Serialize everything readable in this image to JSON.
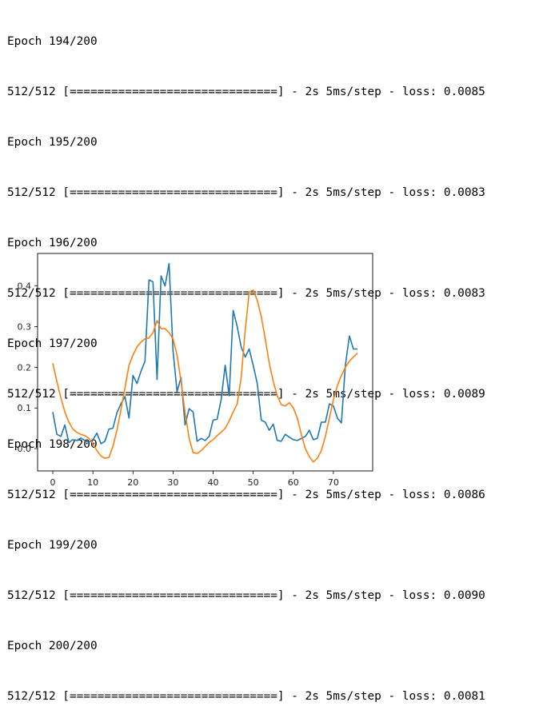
{
  "log": {
    "lines": [
      "Epoch 194/200",
      "512/512 [==============================] - 2s 5ms/step - loss: 0.0085",
      "Epoch 195/200",
      "512/512 [==============================] - 2s 5ms/step - loss: 0.0083",
      "Epoch 196/200",
      "512/512 [==============================] - 2s 5ms/step - loss: 0.0083",
      "Epoch 197/200",
      "512/512 [==============================] - 2s 5ms/step - loss: 0.0089",
      "Epoch 198/200",
      "512/512 [==============================] - 2s 5ms/step - loss: 0.0086",
      "Epoch 199/200",
      "512/512 [==============================] - 2s 5ms/step - loss: 0.0090",
      "Epoch 200/200",
      "512/512 [==============================] - 2s 5ms/step - loss: 0.0081"
    ]
  },
  "chart_data": {
    "type": "line",
    "title": "",
    "xlabel": "",
    "ylabel": "",
    "xlim": [
      -3.8,
      79.8
    ],
    "ylim": [
      -0.055,
      0.48
    ],
    "grid": false,
    "xticks": [
      0,
      10,
      20,
      30,
      40,
      50,
      60,
      70
    ],
    "xtick_labels": [
      "0",
      "10",
      "20",
      "30",
      "40",
      "50",
      "60",
      "70"
    ],
    "yticks": [
      0.0,
      0.1,
      0.2,
      0.3,
      0.4
    ],
    "ytick_labels": [
      "0.0",
      "0.1",
      "0.2",
      "0.3",
      "0.4"
    ],
    "series": [
      {
        "color": "#1f77b4",
        "x": [
          0,
          1,
          2,
          3,
          4,
          5,
          6,
          7,
          8,
          9,
          10,
          11,
          12,
          13,
          14,
          15,
          16,
          17,
          18,
          19,
          20,
          21,
          22,
          23,
          24,
          25,
          26,
          27,
          28,
          29,
          30,
          31,
          32,
          33,
          34,
          35,
          36,
          37,
          38,
          39,
          40,
          41,
          42,
          43,
          44,
          45,
          46,
          47,
          48,
          49,
          50,
          51,
          52,
          53,
          54,
          55,
          56,
          57,
          58,
          59,
          60,
          61,
          62,
          63,
          64,
          65,
          66,
          67,
          68,
          69,
          70,
          71,
          72,
          73,
          74,
          75,
          76
        ],
        "values": [
          0.09,
          0.035,
          0.03,
          0.058,
          0.015,
          0.022,
          0.02,
          0.026,
          0.02,
          0.015,
          0.022,
          0.038,
          0.012,
          0.018,
          0.048,
          0.05,
          0.088,
          0.11,
          0.128,
          0.075,
          0.18,
          0.16,
          0.19,
          0.215,
          0.415,
          0.41,
          0.17,
          0.425,
          0.4,
          0.455,
          0.24,
          0.14,
          0.175,
          0.058,
          0.098,
          0.09,
          0.018,
          0.025,
          0.02,
          0.03,
          0.07,
          0.072,
          0.12,
          0.205,
          0.13,
          0.34,
          0.3,
          0.25,
          0.225,
          0.245,
          0.205,
          0.16,
          0.07,
          0.065,
          0.045,
          0.06,
          0.02,
          0.018,
          0.035,
          0.028,
          0.022,
          0.02,
          0.025,
          0.03,
          0.045,
          0.022,
          0.025,
          0.065,
          0.065,
          0.11,
          0.105,
          0.075,
          0.063,
          0.205,
          0.277,
          0.245,
          0.245
        ]
      },
      {
        "color": "#ff7f0e",
        "x": [
          0,
          1,
          2,
          3,
          4,
          5,
          6,
          7,
          8,
          9,
          10,
          11,
          12,
          13,
          14,
          15,
          16,
          17,
          18,
          19,
          20,
          21,
          22,
          23,
          24,
          25,
          26,
          27,
          28,
          29,
          30,
          31,
          32,
          33,
          34,
          35,
          36,
          37,
          38,
          39,
          40,
          41,
          42,
          43,
          44,
          45,
          46,
          47,
          48,
          49,
          50,
          51,
          52,
          53,
          54,
          55,
          56,
          57,
          58,
          59,
          60,
          61,
          62,
          63,
          64,
          65,
          66,
          67,
          68,
          69,
          70,
          71,
          72,
          73,
          74,
          75,
          76
        ],
        "values": [
          0.21,
          0.165,
          0.125,
          0.09,
          0.065,
          0.048,
          0.04,
          0.035,
          0.032,
          0.025,
          0.012,
          -0.005,
          -0.018,
          -0.024,
          -0.022,
          0.005,
          0.045,
          0.095,
          0.15,
          0.205,
          0.23,
          0.25,
          0.262,
          0.27,
          0.272,
          0.285,
          0.315,
          0.295,
          0.295,
          0.285,
          0.27,
          0.23,
          0.165,
          0.09,
          0.025,
          -0.01,
          -0.012,
          -0.005,
          0.005,
          0.015,
          0.022,
          0.032,
          0.04,
          0.05,
          0.068,
          0.09,
          0.11,
          0.175,
          0.29,
          0.385,
          0.39,
          0.365,
          0.325,
          0.27,
          0.21,
          0.165,
          0.13,
          0.108,
          0.105,
          0.113,
          0.1,
          0.075,
          0.035,
          0.0,
          -0.02,
          -0.033,
          -0.024,
          -0.005,
          0.03,
          0.075,
          0.12,
          0.155,
          0.18,
          0.2,
          0.215,
          0.225,
          0.235
        ]
      }
    ]
  }
}
